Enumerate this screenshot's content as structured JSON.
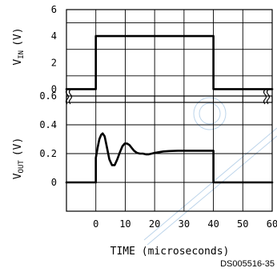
{
  "chart_data": [
    {
      "type": "line",
      "panel": "top",
      "ylabel": "V_IN",
      "ylabel_main": "V",
      "ylabel_sub": "IN",
      "ylabel_unit": "(V)",
      "xlim": [
        -10,
        60
      ],
      "ylim": [
        -1,
        6
      ],
      "y_ticks": [
        0,
        2,
        4,
        6
      ],
      "grid": true,
      "series": [
        {
          "x": [
            -10,
            0,
            0,
            40,
            40,
            60
          ],
          "y": [
            0,
            0,
            4,
            4,
            0,
            0
          ]
        }
      ]
    },
    {
      "type": "line",
      "panel": "bottom",
      "ylabel": "V_OUT",
      "ylabel_main": "V",
      "ylabel_sub": "OUT",
      "ylabel_unit": "(V)",
      "xlabel": "TIME (microseconds)",
      "xlim": [
        -10,
        60
      ],
      "ylim": [
        -0.2,
        0.6
      ],
      "y_ticks": [
        0,
        0.2,
        0.4,
        0.6
      ],
      "x_ticks": [
        0,
        10,
        20,
        30,
        40,
        50,
        60
      ],
      "grid": true,
      "series": [
        {
          "x": [
            -10,
            0,
            0,
            0.6,
            1.2,
            1.8,
            2.3,
            3.0,
            3.8,
            4.6,
            5.5,
            6.4,
            7.3,
            8.2,
            9.0,
            9.8,
            10.6,
            11.4,
            12.2,
            13.0,
            14.0,
            15.0,
            16.0,
            17.0,
            18.0,
            19.0,
            20.0,
            21.5,
            23.0,
            25.0,
            28.0,
            31.0,
            34.0,
            37.0,
            40.0,
            40.0,
            60.0
          ],
          "y": [
            0,
            0,
            0.17,
            0.24,
            0.3,
            0.33,
            0.34,
            0.32,
            0.24,
            0.16,
            0.12,
            0.12,
            0.16,
            0.21,
            0.25,
            0.27,
            0.27,
            0.26,
            0.24,
            0.22,
            0.205,
            0.2,
            0.2,
            0.195,
            0.195,
            0.2,
            0.205,
            0.21,
            0.215,
            0.218,
            0.22,
            0.22,
            0.22,
            0.22,
            0.22,
            0,
            0
          ]
        }
      ]
    }
  ],
  "doc_code": "DS005516-35"
}
